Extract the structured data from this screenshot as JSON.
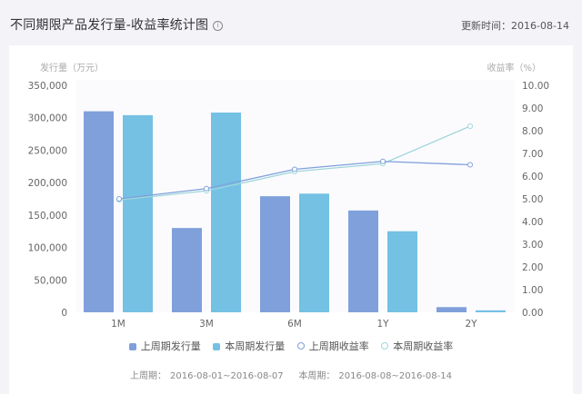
{
  "header": {
    "title": "不同期限产品发行量-收益率统计图",
    "info_icon": "info-icon",
    "updated_label": "更新时间：2016-08-14"
  },
  "footer": {
    "last_period_label": "上周期：",
    "last_period_range": "2016-08-01~2016-08-07",
    "this_period_label": "本周期：",
    "this_period_range": "2016-08-08~2016-08-14"
  },
  "colors": {
    "last_volume": "#7fa0db",
    "this_volume": "#74c1e4",
    "last_rate": "#7fa0db",
    "this_rate": "#9fd6da",
    "axis_text": "#666666",
    "axis_title": "#aaaaaa"
  },
  "chart_data": {
    "type": "bar",
    "title": "不同期限产品发行量-收益率统计图",
    "categories": [
      "1M",
      "3M",
      "6M",
      "1Y",
      "2Y"
    ],
    "ylabel": "发行量（万元）",
    "ylabel_right": "收益率（%）",
    "ylim": [
      0,
      350000
    ],
    "ylim_right": [
      0,
      10
    ],
    "yticks": [
      "0",
      "50,000",
      "100,000",
      "150,000",
      "200,000",
      "250,000",
      "300,000",
      "350,000"
    ],
    "yticks_right": [
      "0.00",
      "1.00",
      "2.00",
      "3.00",
      "4.00",
      "5.00",
      "6.00",
      "7.00",
      "8.00",
      "9.00",
      "10.00"
    ],
    "grid": false,
    "legend_position": "bottom",
    "series": [
      {
        "name": "上周期发行量",
        "type": "bar",
        "axis": "left",
        "values": [
          310000,
          130000,
          179000,
          157000,
          8000
        ]
      },
      {
        "name": "本周期发行量",
        "type": "bar",
        "axis": "left",
        "values": [
          304000,
          308000,
          183000,
          125000,
          3000
        ]
      },
      {
        "name": "上周期收益率",
        "type": "line",
        "axis": "right",
        "values": [
          5.0,
          5.45,
          6.3,
          6.65,
          6.5
        ]
      },
      {
        "name": "本周期收益率",
        "type": "line",
        "axis": "right",
        "values": [
          4.95,
          5.35,
          6.2,
          6.55,
          8.2
        ]
      }
    ]
  }
}
